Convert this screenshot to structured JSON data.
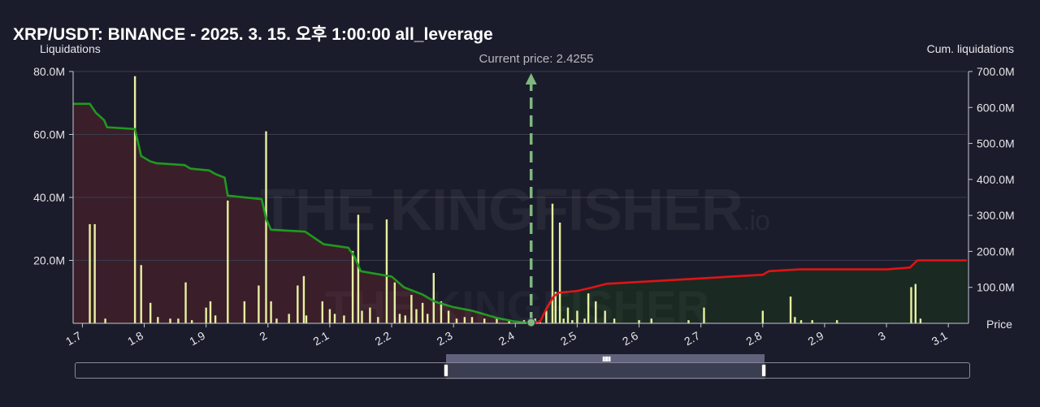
{
  "header": {
    "title": "XRP/USDT: BINANCE - 2025. 3. 15. 오후 1:00:00 all_leverage"
  },
  "watermark": {
    "text": "THE KINGFISHER",
    "suffix": ".io"
  },
  "chart_data": {
    "type": "bar",
    "title": "XRP/USDT: BINANCE - 2025. 3. 15. 오후 1:00:00 all_leverage",
    "ylabel": "Liquidations",
    "y2label": "Cum. liquidations",
    "xlabel": "Price",
    "current_price_label": "Current price: 2.4255",
    "current_price": 2.4255,
    "xlim": [
      1.685,
      3.13
    ],
    "ylim": [
      0,
      80000000
    ],
    "y2lim": [
      0,
      700000000
    ],
    "x_ticks": [
      "1.7",
      "1.8",
      "1.9",
      "2",
      "2.1",
      "2.2",
      "2.3",
      "2.4",
      "2.5",
      "2.6",
      "2.7",
      "2.8",
      "2.9",
      "3",
      "3.1"
    ],
    "x_tick_values": [
      1.7,
      1.8,
      1.9,
      2.0,
      2.1,
      2.2,
      2.3,
      2.4,
      2.5,
      2.6,
      2.7,
      2.8,
      2.9,
      3.0,
      3.1
    ],
    "y_ticks": [
      "20.0M",
      "40.0M",
      "60.0M",
      "80.0M"
    ],
    "y_tick_values": [
      20000000,
      40000000,
      60000000,
      80000000
    ],
    "y2_ticks": [
      "100.0M",
      "200.0M",
      "300.0M",
      "400.0M",
      "500.0M",
      "600.0M",
      "700.0M"
    ],
    "y2_tick_values": [
      100000000,
      200000000,
      300000000,
      400000000,
      500000000,
      600000000,
      700000000
    ],
    "colors": {
      "bars": "#e8f0a0",
      "short_bars": "#8a8fd0",
      "cum_long": "#1f9a1f",
      "cum_short": "#e01414",
      "fill_long": "#3a1f2a",
      "fill_short": "#1a2a22",
      "current_price_line": "#7fb87f"
    },
    "series": [
      {
        "name": "Liquidations",
        "x": [
          1.712,
          1.72,
          1.737,
          1.785,
          1.795,
          1.81,
          1.822,
          1.842,
          1.855,
          1.867,
          1.877,
          1.9,
          1.907,
          1.915,
          1.935,
          1.962,
          1.985,
          1.997,
          2.005,
          2.014,
          2.034,
          2.048,
          2.058,
          2.062,
          2.088,
          2.1,
          2.108,
          2.123,
          2.137,
          2.146,
          2.152,
          2.165,
          2.178,
          2.192,
          2.205,
          2.213,
          2.222,
          2.232,
          2.24,
          2.25,
          2.258,
          2.268,
          2.28,
          2.292,
          2.305,
          2.318,
          2.33,
          2.35,
          2.37,
          2.39,
          2.414,
          2.432,
          2.44,
          2.45,
          2.46,
          2.465,
          2.472,
          2.478,
          2.485,
          2.492,
          2.5,
          2.512,
          2.518,
          2.53,
          2.545,
          2.56,
          2.6,
          2.62,
          2.68,
          2.705,
          2.8,
          2.845,
          2.852,
          2.862,
          2.88,
          2.92,
          3.04,
          3.047,
          3.055
        ],
        "values": [
          31500000,
          31500000,
          1500000,
          78500000,
          18500000,
          6500000,
          2000000,
          1500000,
          1500000,
          13000000,
          1000000,
          5000000,
          7000000,
          2500000,
          39000000,
          7000000,
          12000000,
          61000000,
          7000000,
          1500000,
          3000000,
          12000000,
          15000000,
          2500000,
          7000000,
          4500000,
          3000000,
          2500000,
          23000000,
          34500000,
          4000000,
          5000000,
          2000000,
          33000000,
          13000000,
          3000000,
          2500000,
          9000000,
          4500000,
          6500000,
          3000000,
          16000000,
          7000000,
          4000000,
          1500000,
          2000000,
          2000000,
          1500000,
          1500000,
          1000000,
          1000000,
          1500000,
          1000000,
          4000000,
          38000000,
          10000000,
          32000000,
          1500000,
          5000000,
          1000000,
          4000000,
          1500000,
          9500000,
          7000000,
          4000000,
          1500000,
          1000000,
          1500000,
          1000000,
          5000000,
          4000000,
          8500000,
          2000000,
          1000000,
          1000000,
          1000000,
          11500000,
          12500000,
          1500000
        ]
      },
      {
        "name": "Cum. liquidations (long)",
        "x": [
          1.685,
          1.712,
          1.722,
          1.735,
          1.74,
          1.785,
          1.795,
          1.81,
          1.82,
          1.865,
          1.875,
          1.905,
          1.915,
          1.93,
          1.935,
          1.99,
          1.997,
          2.005,
          2.06,
          2.09,
          2.13,
          2.14,
          2.15,
          2.2,
          2.22,
          2.25,
          2.27,
          2.3,
          2.33,
          2.35,
          2.37,
          2.4,
          2.4255
        ],
        "values": [
          610000000,
          610000000,
          585000000,
          565000000,
          545000000,
          540000000,
          465000000,
          450000000,
          445000000,
          440000000,
          430000000,
          425000000,
          415000000,
          405000000,
          355000000,
          345000000,
          290000000,
          260000000,
          255000000,
          220000000,
          210000000,
          185000000,
          145000000,
          130000000,
          100000000,
          80000000,
          60000000,
          45000000,
          35000000,
          25000000,
          15000000,
          5000000,
          0
        ]
      },
      {
        "name": "Cum. liquidations (short)",
        "x": [
          2.4255,
          2.44,
          2.45,
          2.462,
          2.47,
          2.5,
          2.525,
          2.548,
          2.6,
          2.7,
          2.8,
          2.81,
          2.86,
          2.9,
          3.0,
          3.038,
          3.05,
          3.13
        ],
        "values": [
          0,
          5000000,
          40000000,
          75000000,
          85000000,
          90000000,
          100000000,
          110000000,
          115000000,
          125000000,
          135000000,
          145000000,
          150000000,
          150000000,
          150000000,
          155000000,
          175000000,
          175000000
        ]
      }
    ]
  }
}
